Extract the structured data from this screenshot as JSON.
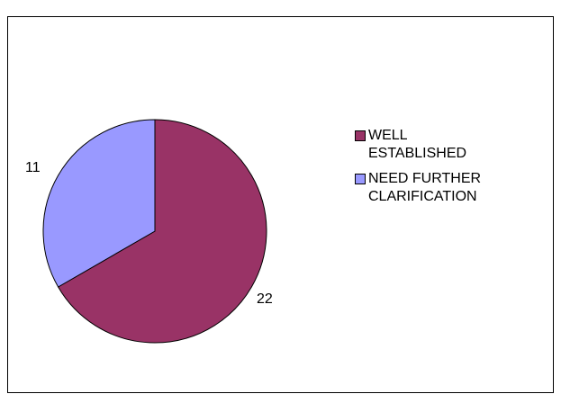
{
  "chart_data": {
    "type": "pie",
    "categories": [
      "WELL ESTABLISHED",
      "NEED FURTHER CLARIFICATION"
    ],
    "values": [
      22,
      11
    ],
    "data_labels": [
      "22",
      "11"
    ],
    "colors": [
      "#993366",
      "#9999ff"
    ],
    "legend": {
      "placement": "right",
      "entries": [
        {
          "label_lines": [
            "WELL",
            "ESTABLISHED"
          ]
        },
        {
          "label_lines": [
            "NEED FURTHER",
            "CLARIFICATION"
          ]
        }
      ]
    }
  }
}
